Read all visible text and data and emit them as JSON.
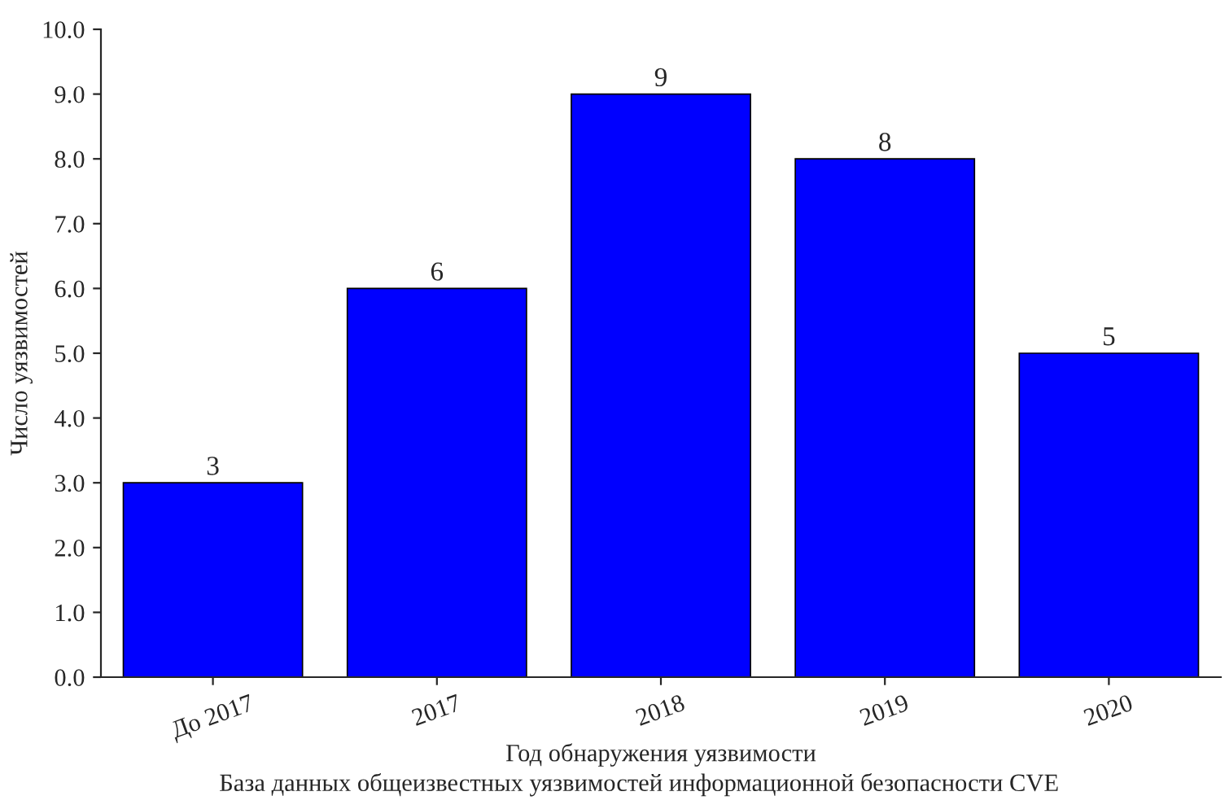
{
  "chart_data": {
    "type": "bar",
    "categories": [
      "До 2017",
      "2017",
      "2018",
      "2019",
      "2020"
    ],
    "values": [
      3,
      6,
      9,
      8,
      5
    ],
    "color": "#0000ff",
    "data_labels": true,
    "xlabel": "Год обнаружения уязвимости",
    "ylabel": "Число уязвимостей",
    "ylim": [
      0,
      10
    ],
    "yticks": [
      {
        "value": 0,
        "label": "0.0"
      },
      {
        "value": 1,
        "label": "1.0"
      },
      {
        "value": 2,
        "label": "2.0"
      },
      {
        "value": 3,
        "label": "3.0"
      },
      {
        "value": 4,
        "label": "4.0"
      },
      {
        "value": 5,
        "label": "5.0"
      },
      {
        "value": 6,
        "label": "6.0"
      },
      {
        "value": 7,
        "label": "7.0"
      },
      {
        "value": 8,
        "label": "8.0"
      },
      {
        "value": 9,
        "label": "9.0"
      },
      {
        "value": 10,
        "label": "10.0"
      }
    ],
    "annotations": [
      "База данных общеизвестных уязвимостей информационной безопасности CVE"
    ],
    "grid": false
  }
}
